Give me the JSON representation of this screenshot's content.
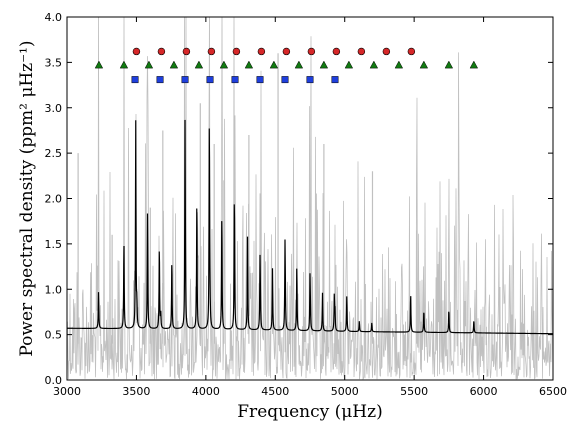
{
  "chart_data": {
    "type": "line",
    "xlabel": "Frequency (μHz)",
    "ylabel": "Power spectral density (ppm² μHz⁻¹)",
    "xlim": [
      3000,
      6500
    ],
    "ylim": [
      0.0,
      4.0
    ],
    "xticks": [
      "3000",
      "3500",
      "4000",
      "4500",
      "5000",
      "5500",
      "6000",
      "6500"
    ],
    "yticks": [
      "0.0",
      "0.5",
      "1.0",
      "1.5",
      "2.0",
      "2.5",
      "3.0",
      "3.5",
      "4.0"
    ],
    "grid": false,
    "colors": {
      "raw": "#c0c0c0",
      "smoothed": "#000000",
      "circle_marker": "#d62728",
      "triangle_marker": "#117a11",
      "square_marker": "#1f3fdd"
    },
    "series": [
      {
        "kind": "raw-spectrum",
        "color": "#c0c0c0",
        "tall_peaks": [
          {
            "x": 3080,
            "y": 2.5
          },
          {
            "x": 3325,
            "y": 1.6
          },
          {
            "x": 3600,
            "y": 1.9
          },
          {
            "x": 3690,
            "y": 2.75
          },
          {
            "x": 3960,
            "y": 3.05
          },
          {
            "x": 4060,
            "y": 2.6
          },
          {
            "x": 4130,
            "y": 2.2
          },
          {
            "x": 4310,
            "y": 2.7
          },
          {
            "x": 4520,
            "y": 3.6
          },
          {
            "x": 4850,
            "y": 2.6
          },
          {
            "x": 5200,
            "y": 2.3
          },
          {
            "x": 5520,
            "y": 1.65
          }
        ]
      },
      {
        "kind": "smoothed-spectrum",
        "color": "#000000",
        "baseline": [
          [
            3000,
            0.57
          ],
          [
            4000,
            0.56
          ],
          [
            5000,
            0.535
          ],
          [
            6500,
            0.51
          ]
        ],
        "peaks": [
          {
            "x": 3227,
            "y": 0.97
          },
          {
            "x": 3410,
            "y": 1.52
          },
          {
            "x": 3495,
            "y": 2.85
          },
          {
            "x": 3503,
            "y": 0.8
          },
          {
            "x": 3580,
            "y": 1.85
          },
          {
            "x": 3665,
            "y": 1.48
          },
          {
            "x": 3675,
            "y": 0.72
          },
          {
            "x": 3755,
            "y": 1.32
          },
          {
            "x": 3850,
            "y": 2.8
          },
          {
            "x": 3853,
            "y": 0.82
          },
          {
            "x": 3935,
            "y": 1.98
          },
          {
            "x": 4025,
            "y": 2.85
          },
          {
            "x": 4029,
            "y": 0.88
          },
          {
            "x": 4115,
            "y": 1.82
          },
          {
            "x": 4205,
            "y": 1.9
          },
          {
            "x": 4207,
            "y": 0.8
          },
          {
            "x": 4300,
            "y": 1.58
          },
          {
            "x": 4390,
            "y": 1.3
          },
          {
            "x": 4393,
            "y": 0.78
          },
          {
            "x": 4480,
            "y": 1.23
          },
          {
            "x": 4570,
            "y": 1.47
          },
          {
            "x": 4573,
            "y": 0.77
          },
          {
            "x": 4655,
            "y": 1.25
          },
          {
            "x": 4750,
            "y": 1.12
          },
          {
            "x": 4753,
            "y": 0.7
          },
          {
            "x": 4840,
            "y": 0.96
          },
          {
            "x": 4925,
            "y": 0.93
          },
          {
            "x": 4930,
            "y": 0.75
          },
          {
            "x": 5015,
            "y": 0.93
          },
          {
            "x": 5105,
            "y": 0.65
          },
          {
            "x": 5195,
            "y": 0.63
          },
          {
            "x": 5475,
            "y": 0.95
          },
          {
            "x": 5570,
            "y": 0.77
          },
          {
            "x": 5750,
            "y": 0.78
          },
          {
            "x": 5930,
            "y": 0.66
          }
        ]
      },
      {
        "kind": "marker",
        "shape": "circle",
        "color": "#d62728",
        "y": 3.62,
        "x": [
          3500,
          3680,
          3860,
          4040,
          4220,
          4400,
          4580,
          4760,
          4940,
          5120,
          5300,
          5480
        ]
      },
      {
        "kind": "marker",
        "shape": "triangle",
        "color": "#117a11",
        "y": 3.47,
        "x": [
          3230,
          3410,
          3590,
          3770,
          3950,
          4130,
          4310,
          4490,
          4670,
          4850,
          5030,
          5210,
          5390,
          5570,
          5750,
          5930
        ]
      },
      {
        "kind": "marker",
        "shape": "square",
        "color": "#1f3fdd",
        "y": 3.31,
        "x": [
          3490,
          3670,
          3850,
          4030,
          4210,
          4390,
          4570,
          4750,
          4930
        ]
      }
    ]
  }
}
